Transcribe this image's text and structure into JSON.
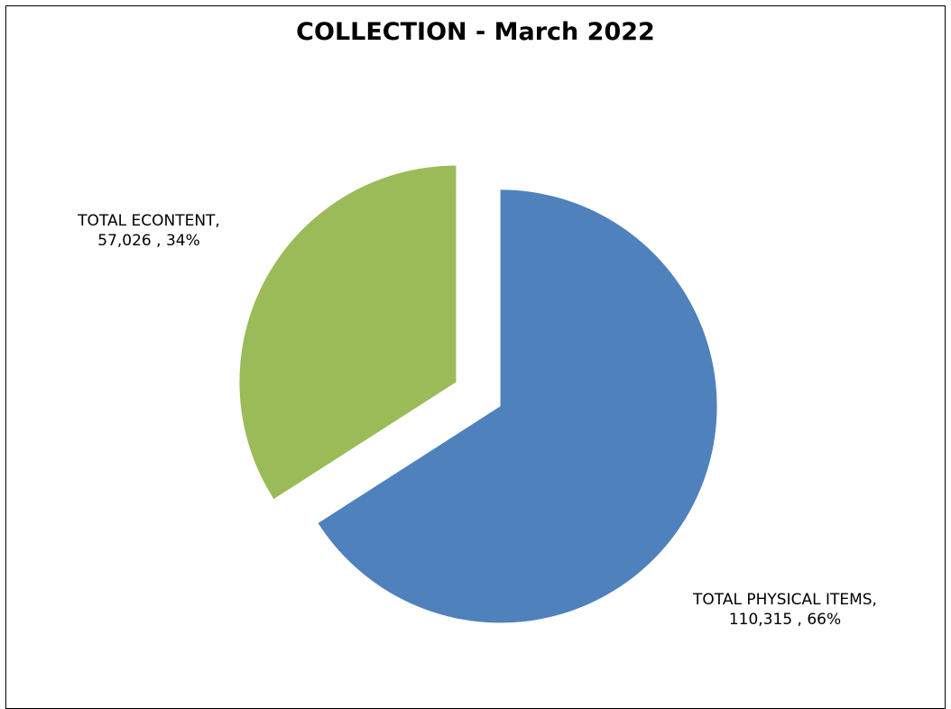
{
  "chart_data": {
    "type": "pie",
    "title": "COLLECTION - March 2022",
    "slices": [
      {
        "name": "TOTAL PHYSICAL ITEMS",
        "value": 110315,
        "percent": 66,
        "label_line1": "TOTAL PHYSICAL ITEMS,",
        "label_line2": "110,315 , 66%",
        "color": "#4f81bd"
      },
      {
        "name": "TOTAL ECONTENT",
        "value": 57026,
        "percent": 34,
        "label_line1": "TOTAL ECONTENT,",
        "label_line2": "57,026 , 34%",
        "color": "#9bbb59"
      }
    ],
    "exploded": true,
    "legend": "none"
  }
}
